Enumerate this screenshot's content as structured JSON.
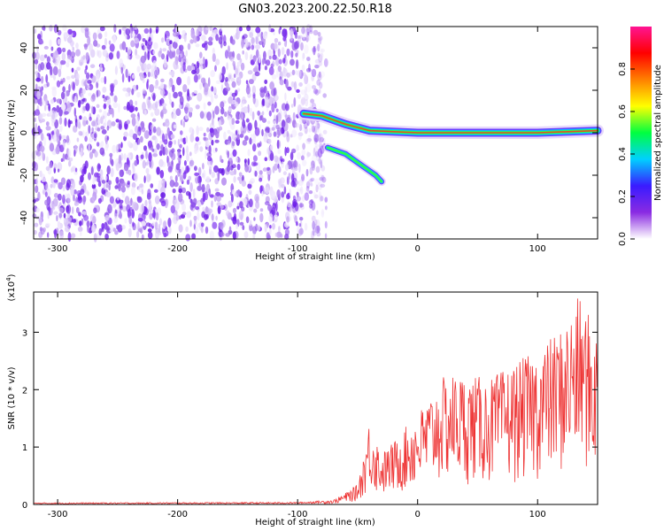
{
  "title": "GN03.2023.200.22.50.R18",
  "chart_data": [
    {
      "type": "heatmap",
      "xlabel": "Height of straight line (km)",
      "ylabel": "Frequency (Hz)",
      "xlim": [
        -320,
        150
      ],
      "ylim": [
        -50,
        50
      ],
      "xticks": [
        -300,
        -200,
        -100,
        0,
        100
      ],
      "yticks": [
        -40,
        -20,
        0,
        20,
        40
      ],
      "colorbar": {
        "label": "Normalized spectral amplitude",
        "range": [
          0,
          1
        ],
        "ticks": [
          "0.0",
          "0.2",
          "0.4",
          "0.6",
          "0.8"
        ],
        "colors": [
          "#ffffff",
          "#8a2be2",
          "#3a1bff",
          "#00d0ff",
          "#00ff40",
          "#ffff00",
          "#ff8000",
          "#ff0000",
          "#ff1493"
        ]
      },
      "noise_region": {
        "x_from": -320,
        "x_to": -85,
        "f_from": -50,
        "f_to": 50
      },
      "signal_track": [
        {
          "x": -95,
          "f": 9
        },
        {
          "x": -80,
          "f": 8
        },
        {
          "x": -60,
          "f": 4
        },
        {
          "x": -40,
          "f": 1
        },
        {
          "x": 0,
          "f": 0
        },
        {
          "x": 50,
          "f": 0
        },
        {
          "x": 100,
          "f": 0
        },
        {
          "x": 150,
          "f": 1
        }
      ],
      "secondary_track": [
        {
          "x": -75,
          "f": -7
        },
        {
          "x": -60,
          "f": -10
        },
        {
          "x": -45,
          "f": -16
        },
        {
          "x": -35,
          "f": -20
        },
        {
          "x": -30,
          "f": -23
        }
      ]
    },
    {
      "type": "line",
      "xlabel": "Height of straight line (km)",
      "ylabel": "SNR (10 * v/v)",
      "y_multiplier": "(x10",
      "y_multiplier_exp": "4",
      "y_multiplier_close": ")",
      "xlim": [
        -320,
        150
      ],
      "ylim": [
        0,
        3.7
      ],
      "xticks": [
        -300,
        -200,
        -100,
        0,
        100
      ],
      "yticks": [
        0,
        1,
        2,
        3
      ],
      "series": [
        {
          "color": "#ee3333",
          "envelope": [
            {
              "x": -320,
              "y": 0.03
            },
            {
              "x": -100,
              "y": 0.04
            },
            {
              "x": -70,
              "y": 0.08
            },
            {
              "x": -60,
              "y": 0.2
            },
            {
              "x": -50,
              "y": 0.35
            },
            {
              "x": -45,
              "y": 0.9
            },
            {
              "x": -40,
              "y": 1.5
            },
            {
              "x": -30,
              "y": 0.9
            },
            {
              "x": -20,
              "y": 1.1
            },
            {
              "x": 0,
              "y": 1.6
            },
            {
              "x": 20,
              "y": 2.2
            },
            {
              "x": 30,
              "y": 2.3
            },
            {
              "x": 60,
              "y": 2.2
            },
            {
              "x": 100,
              "y": 2.7
            },
            {
              "x": 120,
              "y": 3.1
            },
            {
              "x": 135,
              "y": 3.65
            },
            {
              "x": 150,
              "y": 3.0
            }
          ]
        }
      ]
    }
  ]
}
